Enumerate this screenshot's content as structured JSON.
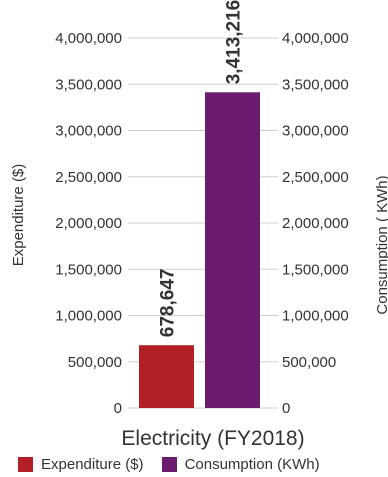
{
  "chart_data": {
    "type": "bar",
    "categories": [
      "Electricity (FY2018)"
    ],
    "series": [
      {
        "name": "Expenditure ($)",
        "values": [
          678647
        ],
        "color": "#b21f24",
        "label": "678,647",
        "axis": "left"
      },
      {
        "name": "Consumption (KWh)",
        "values": [
          3413216
        ],
        "color": "#6b1c6e",
        "label": "3,413,216",
        "axis": "right"
      }
    ],
    "ylabel_left": "Expenditure ($)",
    "ylabel_right": "Consumption ( KWh)",
    "ylim": [
      0,
      4000000
    ],
    "yticks": [
      "0",
      "500,000",
      "1,000,000",
      "1,500,000",
      "2,000,000",
      "2,500,000",
      "3,000,000",
      "3,500,000",
      "4,000,000"
    ],
    "grid": true,
    "legend_position": "bottom"
  }
}
